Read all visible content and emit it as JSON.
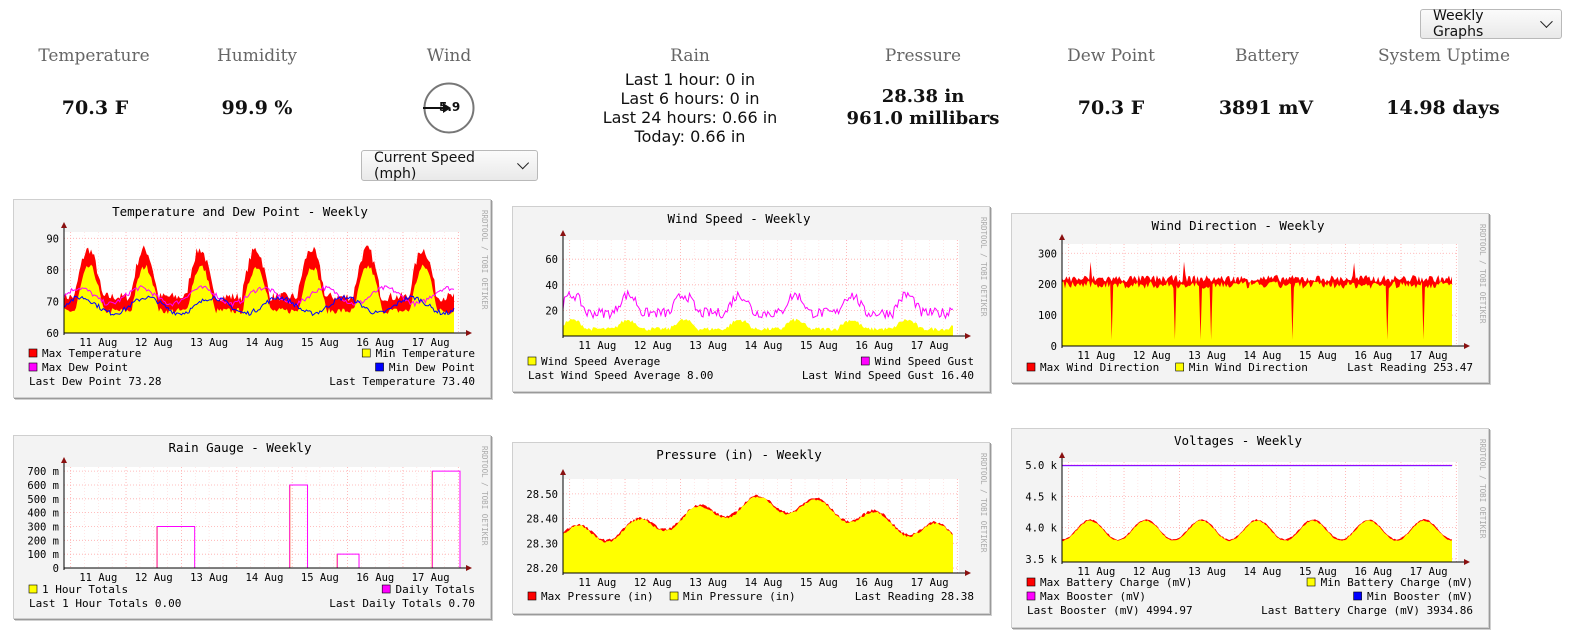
{
  "toolbar": {
    "period_select": "Weekly Graphs"
  },
  "stats": [
    {
      "title": "Temperature",
      "value": "70.3 F"
    },
    {
      "title": "Humidity",
      "value": "99.9 %"
    },
    {
      "title": "Wind",
      "value": "5.9"
    },
    {
      "title": "Rain"
    },
    {
      "title": "Pressure"
    },
    {
      "title": "Dew Point",
      "value": "70.3 F"
    },
    {
      "title": "Battery",
      "value": "3891 mV"
    },
    {
      "title": "System Uptime",
      "value": "14.98 days"
    }
  ],
  "rain": {
    "lines": [
      "Last 1 hour: 0 in",
      "Last 6 hours: 0 in",
      "Last 24 hours: 0.66 in",
      "Today: 0.66 in"
    ]
  },
  "pressure": {
    "lines": [
      "28.38 in",
      "961.0 millibars"
    ]
  },
  "wind": {
    "speed_select": "Current Speed (mph)",
    "direction_deg": 270
  },
  "colors": {
    "red": "#ff0000",
    "yellow": "#ffff00",
    "magenta": "#ff00ff",
    "blue": "#0000ff",
    "grid": "#ffaaaa",
    "axis": "#8a1010",
    "panel": "#f3f3f3"
  },
  "watermark": "RRDTOOL / TOBI OETIKER",
  "chart_data": [
    {
      "type": "area",
      "title": "Temperature and Dew Point - Weekly",
      "categories": [
        "11 Aug",
        "12 Aug",
        "13 Aug",
        "14 Aug",
        "15 Aug",
        "16 Aug",
        "17 Aug"
      ],
      "yticks": [
        "90",
        "80",
        "70",
        "60"
      ],
      "ylim": [
        60,
        92
      ],
      "series": [
        {
          "name": "Max Temperature",
          "color": "#ff0000"
        },
        {
          "name": "Min Temperature",
          "color": "#ffff00"
        },
        {
          "name": "Max Dew Point",
          "color": "#ff00ff"
        },
        {
          "name": "Min Dew Point",
          "color": "#0000ff"
        }
      ],
      "footer": [
        "Last Dew Point 73.28",
        "Last Temperature 73.40"
      ]
    },
    {
      "type": "area",
      "title": "Wind Speed - Weekly",
      "categories": [
        "11 Aug",
        "12 Aug",
        "13 Aug",
        "14 Aug",
        "15 Aug",
        "16 Aug",
        "17 Aug"
      ],
      "yticks": [
        "60",
        "40",
        "20"
      ],
      "ylim": [
        0,
        75
      ],
      "series": [
        {
          "name": "Wind Speed Average",
          "color": "#ffff00"
        },
        {
          "name": "Wind Speed Gust",
          "color": "#ff00ff"
        }
      ],
      "footer": [
        "Last Wind Speed Average 8.00",
        "Last Wind Speed Gust 16.40"
      ]
    },
    {
      "type": "area",
      "title": "Wind Direction - Weekly",
      "categories": [
        "11 Aug",
        "12 Aug",
        "13 Aug",
        "14 Aug",
        "15 Aug",
        "16 Aug",
        "17 Aug"
      ],
      "yticks": [
        "300",
        "200",
        "100",
        "0"
      ],
      "ylim": [
        0,
        330
      ],
      "series": [
        {
          "name": "Max Wind Direction",
          "color": "#ff0000"
        },
        {
          "name": "Min Wind Direction",
          "color": "#ffff00"
        }
      ],
      "footer": [
        "Last Reading 253.47"
      ]
    },
    {
      "type": "line",
      "title": "Rain Gauge - Weekly",
      "categories": [
        "11 Aug",
        "12 Aug",
        "13 Aug",
        "14 Aug",
        "15 Aug",
        "16 Aug",
        "17 Aug"
      ],
      "yticks": [
        "700 m",
        "600 m",
        "500 m",
        "400 m",
        "300 m",
        "200 m",
        "100 m",
        "0"
      ],
      "ylim": [
        0,
        730
      ],
      "series": [
        {
          "name": "1 Hour Totals",
          "color": "#ffff00"
        },
        {
          "name": "Daily Totals",
          "color": "#ff00ff"
        }
      ],
      "footer": [
        "Last 1 Hour Totals 0.00",
        "Last Daily Totals 0.70"
      ]
    },
    {
      "type": "area",
      "title": "Pressure (in) - Weekly",
      "categories": [
        "11 Aug",
        "12 Aug",
        "13 Aug",
        "14 Aug",
        "15 Aug",
        "16 Aug",
        "17 Aug"
      ],
      "yticks": [
        "28.50",
        "28.40",
        "28.30",
        "28.20"
      ],
      "ylim": [
        28.18,
        28.56
      ],
      "series": [
        {
          "name": "Max Pressure (in)",
          "color": "#ff0000"
        },
        {
          "name": "Min Pressure (in)",
          "color": "#ffff00"
        }
      ],
      "footer": [
        "Last Reading 28.38"
      ]
    },
    {
      "type": "area",
      "title": "Voltages - Weekly",
      "categories": [
        "11 Aug",
        "12 Aug",
        "13 Aug",
        "14 Aug",
        "15 Aug",
        "16 Aug",
        "17 Aug"
      ],
      "yticks": [
        "5.0 k",
        "4.5 k",
        "4.0 k",
        "3.5 k"
      ],
      "ylim": [
        3.45,
        5.05
      ],
      "series": [
        {
          "name": "Max Battery Charge (mV)",
          "color": "#ff0000"
        },
        {
          "name": "Min Battery Charge (mV)",
          "color": "#ffff00"
        },
        {
          "name": "Max Booster (mV)",
          "color": "#ff00ff"
        },
        {
          "name": "Min Booster (mV)",
          "color": "#0000ff"
        }
      ],
      "footer": [
        "Last Booster (mV) 4994.97",
        "Last Battery Charge (mV) 3934.86"
      ]
    }
  ]
}
